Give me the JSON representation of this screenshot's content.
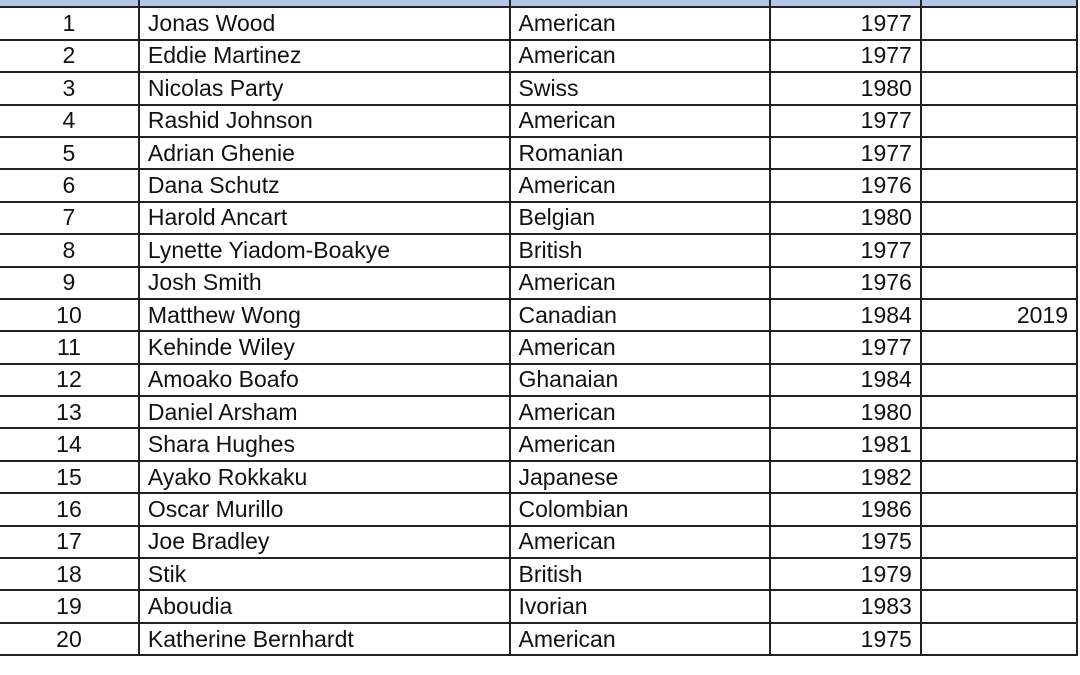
{
  "header_color": "#b4c6e7",
  "rows": [
    {
      "no": "1",
      "artist": "Jonas Wood",
      "nationality": "American",
      "born": "1977",
      "died": ""
    },
    {
      "no": "2",
      "artist": "Eddie Martinez",
      "nationality": "American",
      "born": "1977",
      "died": ""
    },
    {
      "no": "3",
      "artist": "Nicolas Party",
      "nationality": "Swiss",
      "born": "1980",
      "died": ""
    },
    {
      "no": "4",
      "artist": "Rashid Johnson",
      "nationality": "American",
      "born": "1977",
      "died": ""
    },
    {
      "no": "5",
      "artist": "Adrian Ghenie",
      "nationality": "Romanian",
      "born": "1977",
      "died": ""
    },
    {
      "no": "6",
      "artist": "Dana Schutz",
      "nationality": "American",
      "born": "1976",
      "died": ""
    },
    {
      "no": "7",
      "artist": "Harold Ancart",
      "nationality": "Belgian",
      "born": "1980",
      "died": ""
    },
    {
      "no": "8",
      "artist": "Lynette Yiadom-Boakye",
      "nationality": "British",
      "born": "1977",
      "died": ""
    },
    {
      "no": "9",
      "artist": "Josh Smith",
      "nationality": "American",
      "born": "1976",
      "died": ""
    },
    {
      "no": "10",
      "artist": "Matthew Wong",
      "nationality": "Canadian",
      "born": "1984",
      "died": "2019"
    },
    {
      "no": "11",
      "artist": "Kehinde Wiley",
      "nationality": "American",
      "born": "1977",
      "died": ""
    },
    {
      "no": "12",
      "artist": "Amoako Boafo",
      "nationality": "Ghanaian",
      "born": "1984",
      "died": ""
    },
    {
      "no": "13",
      "artist": "Daniel Arsham",
      "nationality": "American",
      "born": "1980",
      "died": ""
    },
    {
      "no": "14",
      "artist": "Shara Hughes",
      "nationality": "American",
      "born": "1981",
      "died": ""
    },
    {
      "no": "15",
      "artist": "Ayako Rokkaku",
      "nationality": "Japanese",
      "born": "1982",
      "died": ""
    },
    {
      "no": "16",
      "artist": "Oscar Murillo",
      "nationality": "Colombian",
      "born": "1986",
      "died": ""
    },
    {
      "no": "17",
      "artist": "Joe Bradley",
      "nationality": "American",
      "born": "1975",
      "died": ""
    },
    {
      "no": "18",
      "artist": "Stik",
      "nationality": "British",
      "born": "1979",
      "died": ""
    },
    {
      "no": "19",
      "artist": "Aboudia",
      "nationality": "Ivorian",
      "born": "1983",
      "died": ""
    },
    {
      "no": "20",
      "artist": "Katherine Bernhardt",
      "nationality": "American",
      "born": "1975",
      "died": ""
    }
  ]
}
